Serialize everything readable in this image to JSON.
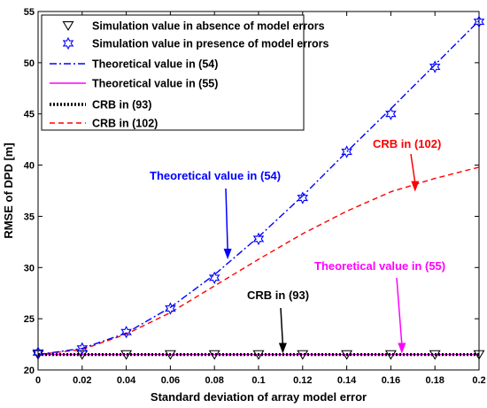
{
  "chart_data": {
    "type": "line",
    "xlabel": "Standard deviation of array model error",
    "ylabel": "RMSE of DPD [m]",
    "xlim": [
      0,
      0.2
    ],
    "ylim": [
      20,
      55
    ],
    "xticks": [
      0,
      0.02,
      0.04,
      0.06,
      0.08,
      0.1,
      0.12,
      0.14,
      0.16,
      0.18,
      0.2
    ],
    "yticks": [
      20,
      25,
      30,
      35,
      40,
      45,
      50,
      55
    ],
    "xtick_labels": [
      "0",
      "0.02",
      "0.04",
      "0.06",
      "0.08",
      "0.1",
      "0.12",
      "0.14",
      "0.16",
      "0.18",
      "0.2"
    ],
    "ytick_labels": [
      "20",
      "25",
      "30",
      "35",
      "40",
      "45",
      "50",
      "55"
    ],
    "grid": false,
    "legend_position": "top-left",
    "series": [
      {
        "name": "Simulation value in absence of model errors",
        "style": "markers",
        "marker": "triangle-down",
        "color": "#000000",
        "x": [
          0,
          0.02,
          0.04,
          0.06,
          0.08,
          0.1,
          0.12,
          0.14,
          0.16,
          0.18,
          0.2
        ],
        "y": [
          21.5,
          21.5,
          21.5,
          21.5,
          21.5,
          21.5,
          21.5,
          21.5,
          21.5,
          21.5,
          21.5
        ]
      },
      {
        "name": "Simulation value in presence of model errors",
        "style": "markers",
        "marker": "hexagram",
        "color": "#0000ff",
        "x": [
          0,
          0.02,
          0.04,
          0.06,
          0.08,
          0.1,
          0.12,
          0.14,
          0.16,
          0.18,
          0.2
        ],
        "y": [
          21.7,
          22.1,
          23.7,
          26.0,
          29.0,
          32.8,
          36.8,
          41.3,
          45.0,
          49.6,
          54.0
        ]
      },
      {
        "name": "Theoretical value in (54)",
        "style": "dashdot",
        "color": "#0000ff",
        "x": [
          0,
          0.02,
          0.04,
          0.06,
          0.08,
          0.1,
          0.12,
          0.14,
          0.16,
          0.18,
          0.2
        ],
        "y": [
          21.5,
          22.1,
          23.6,
          26.1,
          29.3,
          33.0,
          37.0,
          41.3,
          45.5,
          49.8,
          54.1
        ]
      },
      {
        "name": "Theoretical value in (55)",
        "style": "solid",
        "color": "#ff00ff",
        "x": [
          0,
          0.2
        ],
        "y": [
          21.5,
          21.5
        ]
      },
      {
        "name": "CRB in (93)",
        "style": "dotted",
        "color": "#000000",
        "x": [
          0,
          0.2
        ],
        "y": [
          21.5,
          21.5
        ]
      },
      {
        "name": "CRB in (102)",
        "style": "dashed",
        "color": "#ff0000",
        "x": [
          0,
          0.02,
          0.04,
          0.06,
          0.08,
          0.1,
          0.12,
          0.14,
          0.16,
          0.18,
          0.2
        ],
        "y": [
          21.5,
          22.0,
          23.5,
          25.6,
          28.2,
          30.8,
          33.3,
          35.5,
          37.4,
          38.7,
          39.8
        ]
      }
    ],
    "annotations": [
      {
        "text": "Theoretical value in (54)",
        "color": "#0000ff",
        "arrow_to": [
          0.086,
          30.8
        ]
      },
      {
        "text": "CRB in (102)",
        "color": "#ff0000",
        "arrow_to": [
          0.171,
          37.4
        ]
      },
      {
        "text": "Theoretical value in (55)",
        "color": "#ff00ff",
        "arrow_to": [
          0.165,
          21.6
        ]
      },
      {
        "text": "CRB in (93)",
        "color": "#000000",
        "arrow_to": [
          0.111,
          21.6
        ]
      }
    ]
  }
}
